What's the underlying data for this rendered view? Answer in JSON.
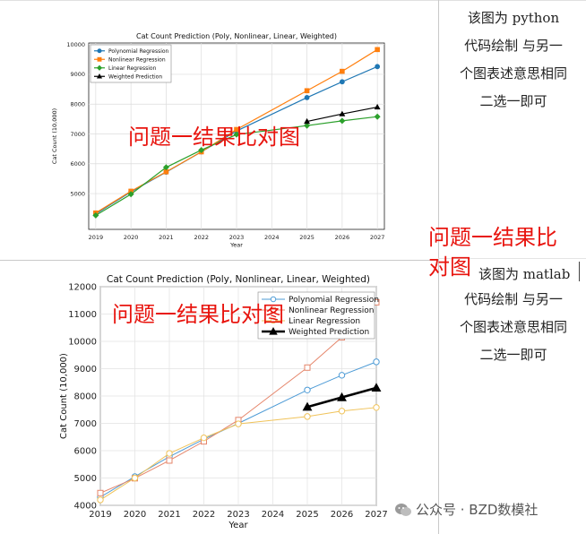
{
  "notes": {
    "top": [
      "该图为 python",
      "代码绘制  与另一",
      "个图表述意思相同",
      "二选一即可"
    ],
    "bottom_first": "该图为 matlab",
    "bottom": [
      "代码绘制  与另一",
      "个图表述意思相同",
      "二选一即可"
    ]
  },
  "labels": {
    "overlay_top": "问题一结果比对图",
    "overlay_bottom": "问题一结果比对图",
    "right_line1": "问题一结果比",
    "right_line2": "对图"
  },
  "watermark": {
    "text": "公众号 · BZD数模社",
    "icon": "wechat-icon"
  },
  "colors": {
    "poly": "#1f77b4",
    "nonlinear": "#ff7f0e",
    "linear": "#2ca02c",
    "weighted": "#000000",
    "m_poly": "#4d9bd6",
    "m_nonlinear": "#e5856a",
    "m_linear": "#f0c35a",
    "m_weighted": "#000000",
    "annotation": "#e8140e"
  },
  "chart_data": [
    {
      "type": "line",
      "title": "Cat Count Prediction (Poly, Nonlinear, Linear, Weighted)",
      "xlabel": "Year",
      "ylabel": "Cat Count (10,000)",
      "xlim": [
        2018.8,
        2027.2
      ],
      "ylim": [
        3800,
        10050
      ],
      "x_ticks": [
        2019,
        2020,
        2021,
        2022,
        2023,
        2024,
        2025,
        2026,
        2027
      ],
      "y_ticks": [
        5000,
        6000,
        7000,
        8000,
        9000,
        10000
      ],
      "grid": true,
      "legend_position": "top-left",
      "series": [
        {
          "name": "Polynomial Regression",
          "x": [
            2019,
            2020,
            2021,
            2022,
            2023,
            2025,
            2026,
            2027
          ],
          "y": [
            4320,
            5060,
            5720,
            6400,
            7100,
            8220,
            8750,
            9260
          ]
        },
        {
          "name": "Nonlinear Regression",
          "x": [
            2019,
            2020,
            2021,
            2022,
            2023,
            2025,
            2026,
            2027
          ],
          "y": [
            4350,
            5080,
            5730,
            6400,
            7150,
            8450,
            9100,
            9830
          ]
        },
        {
          "name": "Linear Regression",
          "x": [
            2019,
            2020,
            2021,
            2022,
            2023,
            2025,
            2026,
            2027
          ],
          "y": [
            4270,
            4980,
            5880,
            6460,
            6980,
            7280,
            7440,
            7580
          ]
        },
        {
          "name": "Weighted Prediction",
          "x": [
            2025,
            2026,
            2027
          ],
          "y": [
            7420,
            7670,
            7900
          ]
        }
      ]
    },
    {
      "type": "line",
      "title": "Cat Count Prediction (Poly, Nonlinear, Linear, Weighted)",
      "xlabel": "Year",
      "ylabel": "Cat Count (10,000)",
      "xlim": [
        2019,
        2027
      ],
      "ylim": [
        4000,
        12000
      ],
      "x_ticks": [
        2019,
        2020,
        2021,
        2022,
        2023,
        2024,
        2025,
        2026,
        2027
      ],
      "y_ticks": [
        4000,
        5000,
        6000,
        7000,
        8000,
        9000,
        10000,
        11000,
        12000
      ],
      "grid": true,
      "legend_position": "top-right",
      "series": [
        {
          "name": "Polynomial Regression",
          "x": [
            2019,
            2020,
            2021,
            2022,
            2023,
            2025,
            2026,
            2027
          ],
          "y": [
            4300,
            5050,
            5780,
            6420,
            7000,
            8220,
            8760,
            9250
          ]
        },
        {
          "name": "Nonlinear Regression",
          "x": [
            2019,
            2020,
            2021,
            2022,
            2023,
            2025,
            2026,
            2027
          ],
          "y": [
            4450,
            4990,
            5640,
            6340,
            7120,
            9040,
            10150,
            11430
          ]
        },
        {
          "name": "Linear Regression",
          "x": [
            2019,
            2020,
            2021,
            2022,
            2023,
            2025,
            2026,
            2027
          ],
          "y": [
            4200,
            5000,
            5900,
            6470,
            6980,
            7250,
            7450,
            7580
          ]
        },
        {
          "name": "Weighted Prediction",
          "x": [
            2025,
            2026,
            2027
          ],
          "y": [
            7600,
            7950,
            8300
          ]
        }
      ]
    }
  ]
}
